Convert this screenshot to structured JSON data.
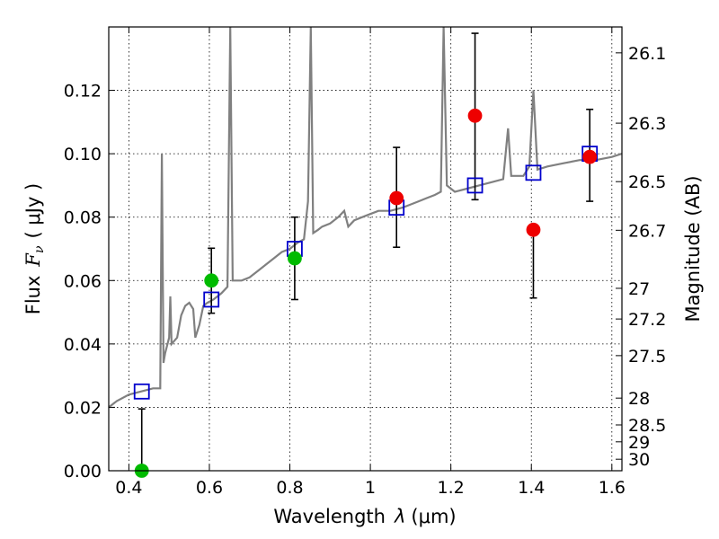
{
  "chart_data": {
    "type": "scatter",
    "xlabel_main": "Wavelength",
    "xlabel_symbol": "λ",
    "xlabel_unit": "(μm)",
    "ylabel_flux": "Flux",
    "ylabel_symbol": "F",
    "ylabel_sub": "ν",
    "ylabel_unit": "( μJy )",
    "ylabel_right": "Magnitude (AB)",
    "xlim": [
      0.35,
      1.625
    ],
    "ylim": [
      0,
      0.14
    ],
    "x_ticks": [
      0.4,
      0.6,
      0.8,
      1.0,
      1.2,
      1.4,
      1.6
    ],
    "x_tick_labels": [
      "0.4",
      "0.6",
      "0.8",
      "1",
      "1.2",
      "1.4",
      "1.6"
    ],
    "y_ticks": [
      0,
      0.02,
      0.04,
      0.06,
      0.08,
      0.1,
      0.12
    ],
    "y_tick_labels": [
      "0.00",
      "0.02",
      "0.04",
      "0.06",
      "0.08",
      "0.10",
      "0.12"
    ],
    "mag_ticks": [
      26.1,
      26.3,
      26.5,
      26.7,
      27,
      27.2,
      27.5,
      28,
      28.5,
      29,
      30
    ],
    "mag_tick_labels": [
      "26.1",
      "26.3",
      "26.5",
      "26.7",
      "27",
      "27.2",
      "27.5",
      "28",
      "28.5",
      "29",
      "30"
    ],
    "grid": true,
    "colors": {
      "spectrum": "#808080",
      "model": "#0000cc",
      "optical": "#00bb00",
      "nir": "#ee0000",
      "errorbar": "#000000"
    },
    "spectrum": {
      "name": "",
      "points": [
        [
          0.35,
          0.02
        ],
        [
          0.37,
          0.022
        ],
        [
          0.4,
          0.024
        ],
        [
          0.43,
          0.025
        ],
        [
          0.46,
          0.026
        ],
        [
          0.478,
          0.026
        ],
        [
          0.482,
          0.1
        ],
        [
          0.486,
          0.034
        ],
        [
          0.49,
          0.037
        ],
        [
          0.5,
          0.042
        ],
        [
          0.503,
          0.055
        ],
        [
          0.506,
          0.04
        ],
        [
          0.52,
          0.042
        ],
        [
          0.53,
          0.049
        ],
        [
          0.54,
          0.052
        ],
        [
          0.55,
          0.053
        ],
        [
          0.56,
          0.051
        ],
        [
          0.565,
          0.042
        ],
        [
          0.575,
          0.046
        ],
        [
          0.585,
          0.052
        ],
        [
          0.595,
          0.053
        ],
        [
          0.61,
          0.054
        ],
        [
          0.63,
          0.056
        ],
        [
          0.645,
          0.058
        ],
        [
          0.652,
          0.145
        ],
        [
          0.658,
          0.06
        ],
        [
          0.68,
          0.06
        ],
        [
          0.7,
          0.061
        ],
        [
          0.72,
          0.063
        ],
        [
          0.74,
          0.065
        ],
        [
          0.76,
          0.067
        ],
        [
          0.78,
          0.069
        ],
        [
          0.8,
          0.07
        ],
        [
          0.82,
          0.072
        ],
        [
          0.835,
          0.073
        ],
        [
          0.845,
          0.085
        ],
        [
          0.852,
          0.145
        ],
        [
          0.858,
          0.075
        ],
        [
          0.87,
          0.076
        ],
        [
          0.88,
          0.077
        ],
        [
          0.9,
          0.078
        ],
        [
          0.92,
          0.08
        ],
        [
          0.935,
          0.082
        ],
        [
          0.945,
          0.077
        ],
        [
          0.96,
          0.079
        ],
        [
          0.98,
          0.08
        ],
        [
          1.0,
          0.081
        ],
        [
          1.02,
          0.082
        ],
        [
          1.05,
          0.082
        ],
        [
          1.08,
          0.083
        ],
        [
          1.1,
          0.084
        ],
        [
          1.12,
          0.085
        ],
        [
          1.14,
          0.086
        ],
        [
          1.16,
          0.087
        ],
        [
          1.175,
          0.088
        ],
        [
          1.182,
          0.145
        ],
        [
          1.19,
          0.09
        ],
        [
          1.21,
          0.088
        ],
        [
          1.24,
          0.089
        ],
        [
          1.27,
          0.09
        ],
        [
          1.3,
          0.091
        ],
        [
          1.33,
          0.092
        ],
        [
          1.342,
          0.108
        ],
        [
          1.35,
          0.093
        ],
        [
          1.38,
          0.093
        ],
        [
          1.395,
          0.096
        ],
        [
          1.405,
          0.12
        ],
        [
          1.415,
          0.095
        ],
        [
          1.44,
          0.096
        ],
        [
          1.48,
          0.097
        ],
        [
          1.52,
          0.098
        ],
        [
          1.56,
          0.098
        ],
        [
          1.6,
          0.099
        ],
        [
          1.625,
          0.1
        ]
      ]
    },
    "series": [
      {
        "name": "",
        "marker": "open-square",
        "color": "#0000cc",
        "x": [
          0.432,
          0.605,
          0.812,
          1.065,
          1.26,
          1.405,
          1.545
        ],
        "y": [
          0.025,
          0.054,
          0.07,
          0.083,
          0.09,
          0.094,
          0.1
        ]
      },
      {
        "name": "",
        "marker": "filled-circle",
        "color": "#00bb00",
        "x": [
          0.432,
          0.605,
          0.812
        ],
        "y": [
          0.0,
          0.06,
          0.067
        ],
        "err_low": [
          null,
          0.0497,
          0.054
        ],
        "err_high": [
          0.0195,
          0.0702,
          0.08
        ]
      },
      {
        "name": "",
        "marker": "filled-circle",
        "color": "#ee0000",
        "x": [
          1.065,
          1.26,
          1.405,
          1.545
        ],
        "y": [
          0.086,
          0.112,
          0.076,
          0.099
        ],
        "err_low": [
          0.0705,
          0.0855,
          0.0545,
          0.085
        ],
        "err_high": [
          0.102,
          0.138,
          null,
          0.114
        ]
      }
    ]
  }
}
